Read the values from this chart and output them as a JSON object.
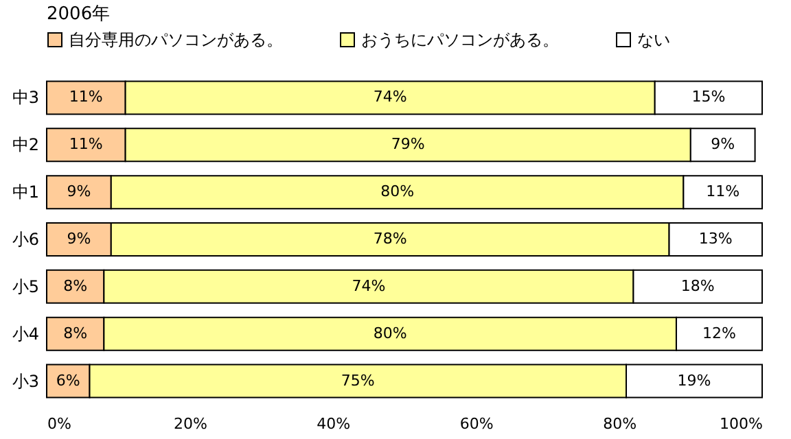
{
  "chart_data": {
    "type": "bar",
    "title": "2006年",
    "orientation": "horizontal",
    "stacked": true,
    "categories": [
      "中3",
      "中2",
      "中1",
      "小6",
      "小5",
      "小4",
      "小3"
    ],
    "series": [
      {
        "name": "自分専用のパソコンがある。",
        "color": "#ffcc99",
        "values": [
          11,
          11,
          9,
          9,
          8,
          8,
          6
        ],
        "value_labels": [
          "11%",
          "11%",
          "9%",
          "9%",
          "8%",
          "8%",
          "6%"
        ]
      },
      {
        "name": "おうちにパソコンがある。",
        "color": "#ffff99",
        "values": [
          74,
          79,
          80,
          78,
          74,
          80,
          75
        ],
        "value_labels": [
          "74%",
          "79%",
          "80%",
          "78%",
          "74%",
          "80%",
          "75%"
        ]
      },
      {
        "name": "ない",
        "color": "#ffffff",
        "values": [
          15,
          9,
          11,
          13,
          18,
          12,
          19
        ],
        "value_labels": [
          "15%",
          "9%",
          "11%",
          "13%",
          "18%",
          "12%",
          "19%"
        ]
      }
    ],
    "xlim": [
      0,
      100
    ],
    "xticks": [
      {
        "value": 0,
        "label": "0%"
      },
      {
        "value": 20,
        "label": "20%"
      },
      {
        "value": 40,
        "label": "40%"
      },
      {
        "value": 60,
        "label": "60%"
      },
      {
        "value": 80,
        "label": "80%"
      },
      {
        "value": 100,
        "label": "100%"
      }
    ],
    "grid": false,
    "legend": "top"
  }
}
